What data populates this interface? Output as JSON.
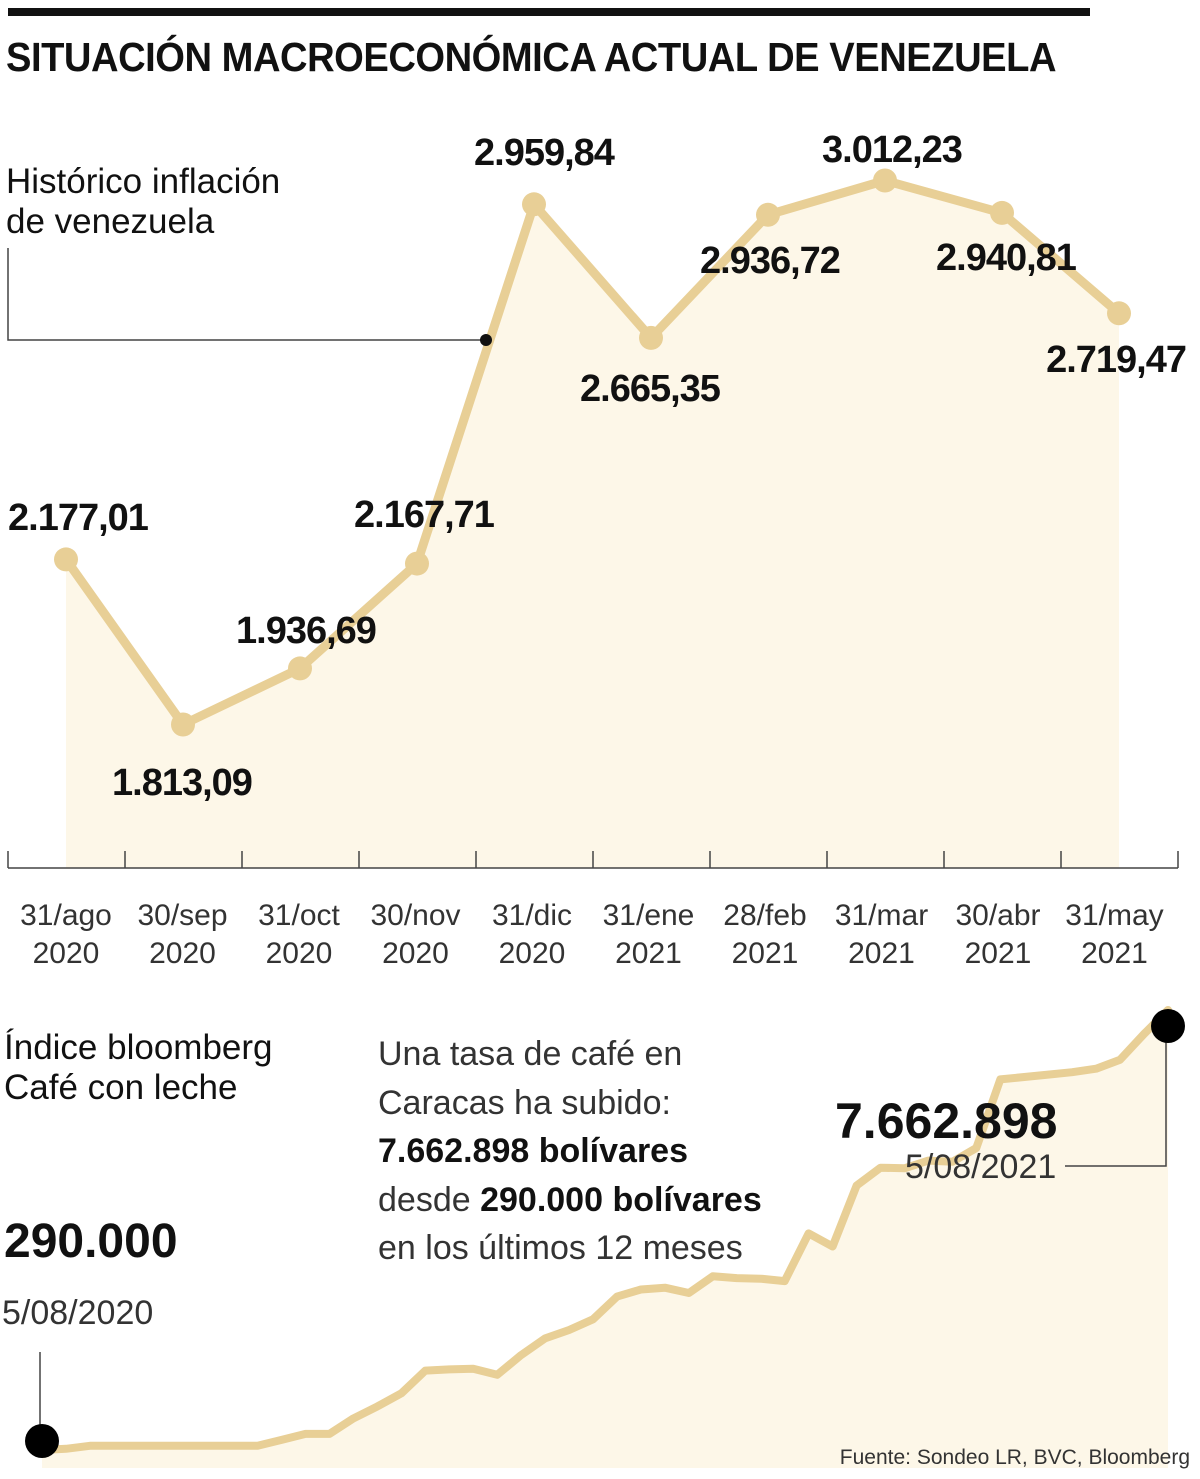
{
  "header": {
    "title": "SITUACIÓN MACROECONÓMICA ACTUAL DE VENEZUELA"
  },
  "colors": {
    "line": "#e8cf96",
    "fill": "#fdf7e8",
    "text": "#111111",
    "marker_dark": "#000000"
  },
  "chart_data": [
    {
      "type": "line",
      "title": "Histórico inflación de venezuela",
      "title_lines": [
        "Histórico inflación",
        "de venezuela"
      ],
      "categories": [
        [
          "31/ago",
          "2020"
        ],
        [
          "30/sep",
          "2020"
        ],
        [
          "31/oct",
          "2020"
        ],
        [
          "30/nov",
          "2020"
        ],
        [
          "31/dic",
          "2020"
        ],
        [
          "31/ene",
          "2021"
        ],
        [
          "28/feb",
          "2021"
        ],
        [
          "31/mar",
          "2021"
        ],
        [
          "30/abr",
          "2021"
        ],
        [
          "31/may",
          "2021"
        ]
      ],
      "values": [
        2177.01,
        1813.09,
        1936.69,
        2167.71,
        2959.84,
        2665.35,
        2936.72,
        3012.23,
        2940.81,
        2719.47
      ],
      "data_labels": [
        "2.177,01",
        "1.813,09",
        "1.936,69",
        "2.167,71",
        "2.959,84",
        "2.665,35",
        "2.936,72",
        "3.012,23",
        "2.940,81",
        "2.719,47"
      ],
      "area_fill": true,
      "grid": false
    },
    {
      "type": "area",
      "title": "Índice bloomberg Café con leche",
      "title_lines": [
        "Índice bloomberg",
        "Café con leche"
      ],
      "start": {
        "value": "290.000",
        "date": "5/08/2020"
      },
      "end": {
        "value": "7.662.898",
        "date": "5/08/2021"
      },
      "values": [
        290000,
        310000,
        360000,
        360000,
        360000,
        360000,
        360000,
        360000,
        360000,
        360000,
        460000,
        560000,
        560000,
        820000,
        1020000,
        1240000,
        1620000,
        1640000,
        1650000,
        1550000,
        1880000,
        2160000,
        2300000,
        2480000,
        2860000,
        2980000,
        3010000,
        2920000,
        3200000,
        3170000,
        3160000,
        3120000,
        3920000,
        3700000,
        4720000,
        5020000,
        5010000,
        5140000,
        5120000,
        5350000,
        6500000,
        6540000,
        6580000,
        6620000,
        6680000,
        6830000,
        7260000,
        7662898
      ],
      "grid": false
    }
  ],
  "note": {
    "line1": "Una tasa de café en",
    "line2": "Caracas ha subido:",
    "line3_bold": "7.662.898 bolívares",
    "line4_prefix": "desde ",
    "line4_bold": "290.000 bolívares",
    "line5": "en los últimos 12 meses"
  },
  "source": "Fuente: Sondeo LR, BVC, Bloomberg"
}
